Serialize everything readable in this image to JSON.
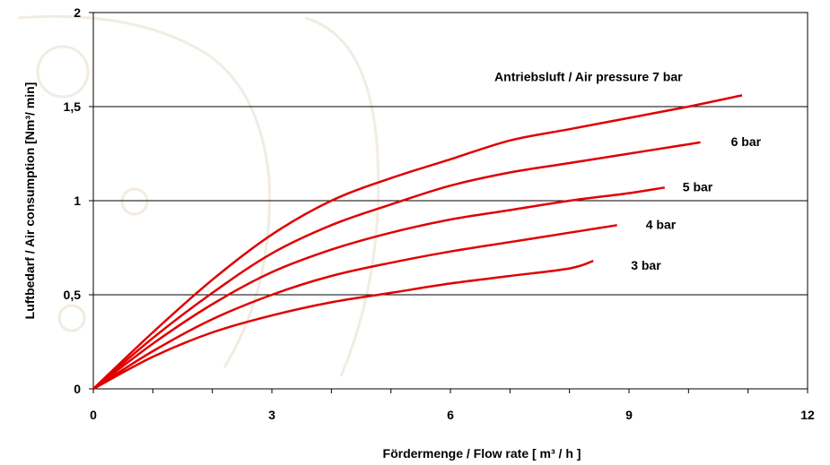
{
  "chart_data": {
    "type": "line",
    "title": "",
    "xlabel": "Fördermenge / Flow rate [ m³ / h ]",
    "ylabel": "Luftbedarf / Air consumption [Nm³/ min]",
    "xlim": [
      0,
      12
    ],
    "ylim": [
      0,
      2
    ],
    "x_ticks": [
      0,
      3,
      6,
      9,
      12
    ],
    "x_tick_labels": [
      "0",
      "3",
      "6",
      "9",
      "12"
    ],
    "y_ticks": [
      0,
      0.5,
      1,
      1.5,
      2
    ],
    "y_tick_labels": [
      "0",
      "0,5",
      "1",
      "1,5",
      "2"
    ],
    "grid": "horizontal",
    "line_color": "#e00000",
    "series": [
      {
        "name": "Antriebsluft / Air pressure 7 bar",
        "x": [
          0,
          1,
          2,
          3,
          4,
          5,
          6,
          7,
          8,
          9,
          10,
          10.9
        ],
        "y": [
          0,
          0.3,
          0.58,
          0.82,
          1.0,
          1.12,
          1.22,
          1.32,
          1.38,
          1.44,
          1.5,
          1.56
        ]
      },
      {
        "name": "6 bar",
        "x": [
          0,
          1,
          2,
          3,
          4,
          5,
          6,
          7,
          8,
          9,
          10,
          10.2
        ],
        "y": [
          0,
          0.27,
          0.51,
          0.72,
          0.87,
          0.98,
          1.08,
          1.15,
          1.2,
          1.25,
          1.3,
          1.31
        ]
      },
      {
        "name": "5 bar",
        "x": [
          0,
          1,
          2,
          3,
          4,
          5,
          6,
          7,
          8,
          9,
          9.6
        ],
        "y": [
          0,
          0.24,
          0.45,
          0.62,
          0.74,
          0.83,
          0.9,
          0.95,
          1.0,
          1.04,
          1.07
        ]
      },
      {
        "name": "4 bar",
        "x": [
          0,
          1,
          2,
          3,
          4,
          5,
          6,
          7,
          8,
          8.8
        ],
        "y": [
          0,
          0.2,
          0.37,
          0.5,
          0.6,
          0.67,
          0.73,
          0.78,
          0.83,
          0.87
        ]
      },
      {
        "name": "3 bar",
        "x": [
          0,
          1,
          2,
          3,
          4,
          5,
          6,
          7,
          8,
          8.4
        ],
        "y": [
          0,
          0.17,
          0.3,
          0.39,
          0.46,
          0.51,
          0.56,
          0.6,
          0.64,
          0.68
        ]
      }
    ]
  }
}
